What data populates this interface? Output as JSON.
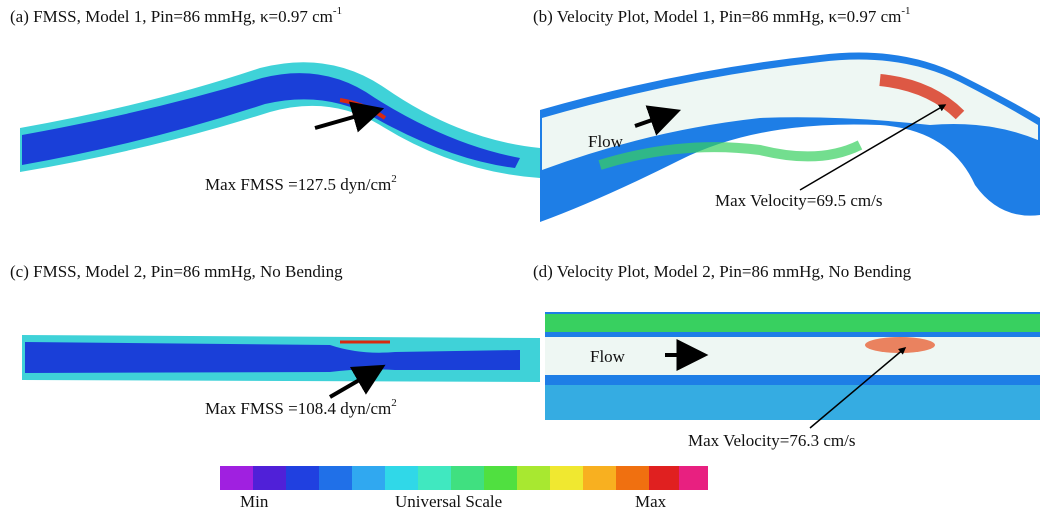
{
  "panels": [
    {
      "title": "(a) FMSS, Model 1, Pin=86 mmHg,  κ=0.97 cm",
      "title_sup": "-1",
      "annotation": "Max FMSS =127.5 dyn/cm",
      "annotation_sup": "2"
    },
    {
      "title": "(b) Velocity Plot, Model 1, Pin=86 mmHg, κ=0.97 cm",
      "title_sup": "-1",
      "flow_label": "Flow",
      "annotation": "Max Velocity=69.5 cm/s"
    },
    {
      "title": "(c) FMSS, Model 2, Pin=86 mmHg,  No Bending",
      "annotation": "Max FMSS =108.4 dyn/cm",
      "annotation_sup": "2"
    },
    {
      "title": "(d) Velocity Plot, Model 2, Pin=86 mmHg,  No Bending",
      "flow_label": "Flow",
      "annotation": "Max Velocity=76.3 cm/s"
    }
  ],
  "colorbar": {
    "min_label": "Min",
    "center_label": "Universal Scale",
    "max_label": "Max"
  }
}
